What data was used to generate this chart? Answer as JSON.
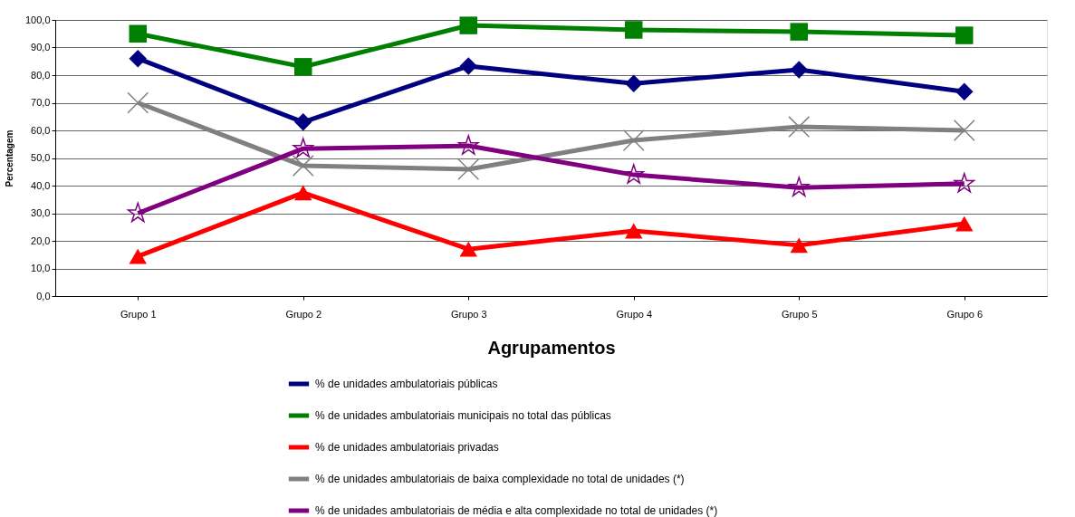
{
  "chart_data": {
    "type": "line",
    "xlabel": "Agrupamentos",
    "ylabel": "Percentagem",
    "categories": [
      "Grupo 1",
      "Grupo 2",
      "Grupo 3",
      "Grupo 4",
      "Grupo 5",
      "Grupo 6"
    ],
    "ylim": [
      0,
      100
    ],
    "yticks": [
      {
        "value": 0,
        "label": "0,0"
      },
      {
        "value": 10,
        "label": "10,0"
      },
      {
        "value": 20,
        "label": "20,0"
      },
      {
        "value": 30,
        "label": "30,0"
      },
      {
        "value": 40,
        "label": "40,0"
      },
      {
        "value": 50,
        "label": "50,0"
      },
      {
        "value": 60,
        "label": "60,0"
      },
      {
        "value": 70,
        "label": "70,0"
      },
      {
        "value": 80,
        "label": "80,0"
      },
      {
        "value": 90,
        "label": "90,0"
      },
      {
        "value": 100,
        "label": "100,0"
      }
    ],
    "grid": "y",
    "legend": "bottom",
    "line_style": "solid",
    "series": [
      {
        "name": "% de unidades ambulatoriais públicas",
        "color": "#000080",
        "marker": "diamond",
        "values": [
          86,
          63,
          83.3,
          77,
          82,
          74
        ]
      },
      {
        "name": "% de unidades ambulatoriais municipais no total das públicas",
        "color": "#008000",
        "marker": "square",
        "values": [
          95,
          83,
          98,
          96.4,
          95.7,
          94.4
        ]
      },
      {
        "name": "% de unidades ambulatoriais privadas",
        "color": "#ff0000",
        "marker": "triangle",
        "values": [
          14.4,
          37.4,
          17,
          23.6,
          18.4,
          26.2
        ]
      },
      {
        "name": "% de unidades ambulatoriais de baixa complexidade no total de unidades (*)",
        "color": "#808080",
        "marker": "cross",
        "values": [
          70,
          47.2,
          45.9,
          56.4,
          61.3,
          60
        ]
      },
      {
        "name": "% de unidades ambulatoriais de média e alta complexidade no total de unidades (*)",
        "color": "#800080",
        "marker": "star",
        "values": [
          30,
          53.4,
          54.4,
          43.9,
          39.3,
          40.7
        ]
      }
    ]
  }
}
